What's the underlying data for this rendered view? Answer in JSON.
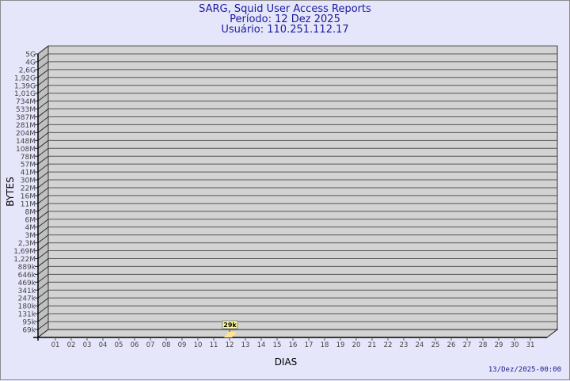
{
  "header": {
    "title": "SARG, Squid User Access Reports",
    "period": "Período: 12 Dez 2025",
    "user": "Usuário: 110.251.112.17"
  },
  "footer": {
    "timestamp": "13/Dez/2025-00:00"
  },
  "chart_data": {
    "type": "bar",
    "xlabel": "DIAS",
    "ylabel": "BYTES",
    "x_ticks": [
      "01",
      "02",
      "03",
      "04",
      "05",
      "06",
      "07",
      "08",
      "09",
      "10",
      "11",
      "12",
      "13",
      "14",
      "15",
      "16",
      "17",
      "18",
      "19",
      "20",
      "21",
      "22",
      "23",
      "24",
      "25",
      "26",
      "27",
      "28",
      "29",
      "30",
      "31"
    ],
    "y_ticks": [
      "5G",
      "4G",
      "2,6G",
      "1,92G",
      "1,39G",
      "1,01G",
      "734M",
      "533M",
      "387M",
      "281M",
      "204M",
      "148M",
      "108M",
      "78M",
      "57M",
      "41M",
      "30M",
      "22M",
      "16M",
      "11M",
      "8M",
      "6M",
      "4M",
      "3M",
      "2,3M",
      "1,69M",
      "1,22M",
      "889k",
      "646k",
      "469k",
      "341k",
      "247k",
      "180k",
      "131k",
      "95k",
      "69k"
    ],
    "y_scale": "log",
    "grid": true,
    "points": [
      {
        "x": "12",
        "value": 29000,
        "label": "29k"
      }
    ],
    "colors": {
      "background": "#e6e6fa",
      "plot": "#d3d3d3",
      "wall": "#c0c0c0",
      "bar": "#ffe68c",
      "label_bg": "#ffff99",
      "title": "#1a1aa0"
    }
  }
}
